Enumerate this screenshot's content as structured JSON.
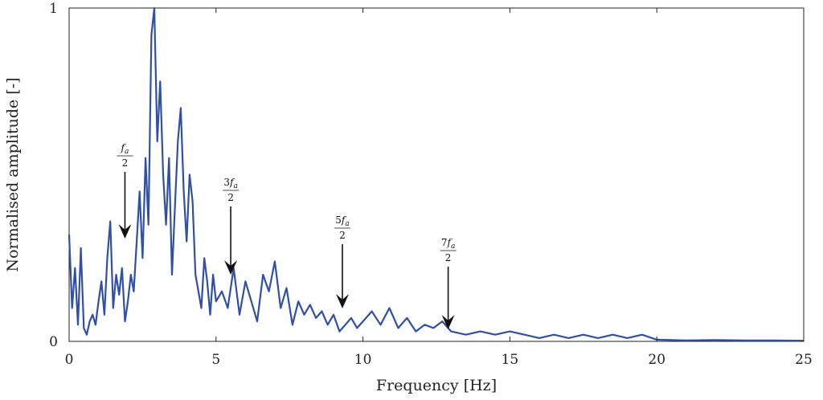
{
  "chart_data": {
    "type": "line",
    "title": "",
    "xlabel": "Frequency [Hz]",
    "ylabel": "Normalised amplitude [-]",
    "xlim": [
      0,
      25
    ],
    "ylim": [
      0,
      1
    ],
    "x_ticks": [
      "0",
      "5",
      "10",
      "15",
      "20",
      "25"
    ],
    "y_ticks": [
      "0",
      "1"
    ],
    "grid": false,
    "line_color": "#2f4fa8",
    "series": [
      {
        "x": [
          0.0,
          0.1,
          0.2,
          0.3,
          0.4,
          0.5,
          0.6,
          0.7,
          0.8,
          0.9,
          1.0,
          1.1,
          1.2,
          1.3,
          1.4,
          1.5,
          1.6,
          1.7,
          1.8,
          1.9,
          2.0,
          2.1,
          2.2,
          2.3,
          2.4,
          2.5,
          2.6,
          2.7,
          2.8,
          2.9,
          3.0,
          3.1,
          3.2,
          3.3,
          3.4,
          3.5,
          3.6,
          3.7,
          3.8,
          3.9,
          4.0,
          4.1,
          4.2,
          4.3,
          4.4,
          4.5,
          4.6,
          4.7,
          4.8,
          4.9,
          5.0,
          5.2,
          5.4,
          5.6,
          5.8,
          6.0,
          6.2,
          6.4,
          6.6,
          6.8,
          7.0,
          7.2,
          7.4,
          7.6,
          7.8,
          8.0,
          8.2,
          8.4,
          8.6,
          8.8,
          9.0,
          9.2,
          9.4,
          9.6,
          9.8,
          10.0,
          10.3,
          10.6,
          10.9,
          11.2,
          11.5,
          11.8,
          12.1,
          12.4,
          12.7,
          13.0,
          13.5,
          14.0,
          14.5,
          15.0,
          15.5,
          16.0,
          16.5,
          17.0,
          17.5,
          18.0,
          18.5,
          19.0,
          19.5,
          20.0,
          21.0,
          22.0,
          23.0,
          24.0,
          25.0
        ],
        "y": [
          0.32,
          0.1,
          0.22,
          0.05,
          0.28,
          0.04,
          0.02,
          0.06,
          0.08,
          0.05,
          0.12,
          0.18,
          0.08,
          0.25,
          0.36,
          0.1,
          0.2,
          0.14,
          0.22,
          0.06,
          0.12,
          0.2,
          0.15,
          0.3,
          0.45,
          0.25,
          0.55,
          0.35,
          0.92,
          1.0,
          0.6,
          0.78,
          0.5,
          0.35,
          0.55,
          0.2,
          0.4,
          0.6,
          0.7,
          0.45,
          0.3,
          0.5,
          0.42,
          0.2,
          0.15,
          0.1,
          0.25,
          0.18,
          0.08,
          0.2,
          0.12,
          0.15,
          0.1,
          0.22,
          0.08,
          0.18,
          0.12,
          0.06,
          0.2,
          0.15,
          0.24,
          0.1,
          0.16,
          0.05,
          0.12,
          0.08,
          0.11,
          0.07,
          0.09,
          0.05,
          0.08,
          0.03,
          0.05,
          0.07,
          0.04,
          0.06,
          0.09,
          0.05,
          0.1,
          0.04,
          0.07,
          0.03,
          0.05,
          0.04,
          0.06,
          0.03,
          0.02,
          0.03,
          0.02,
          0.03,
          0.02,
          0.01,
          0.02,
          0.01,
          0.02,
          0.01,
          0.02,
          0.01,
          0.02,
          0.005,
          0.003,
          0.004,
          0.003,
          0.003,
          0.002
        ]
      }
    ],
    "annotations": [
      {
        "num": "",
        "sym": "f",
        "sub": "a",
        "den": "2",
        "x": 1.9
      },
      {
        "num": "3",
        "sym": "f",
        "sub": "a",
        "den": "2",
        "x": 5.5
      },
      {
        "num": "5",
        "sym": "f",
        "sub": "a",
        "den": "2",
        "x": 9.3
      },
      {
        "num": "7",
        "sym": "f",
        "sub": "a",
        "den": "2",
        "x": 12.9
      }
    ]
  }
}
